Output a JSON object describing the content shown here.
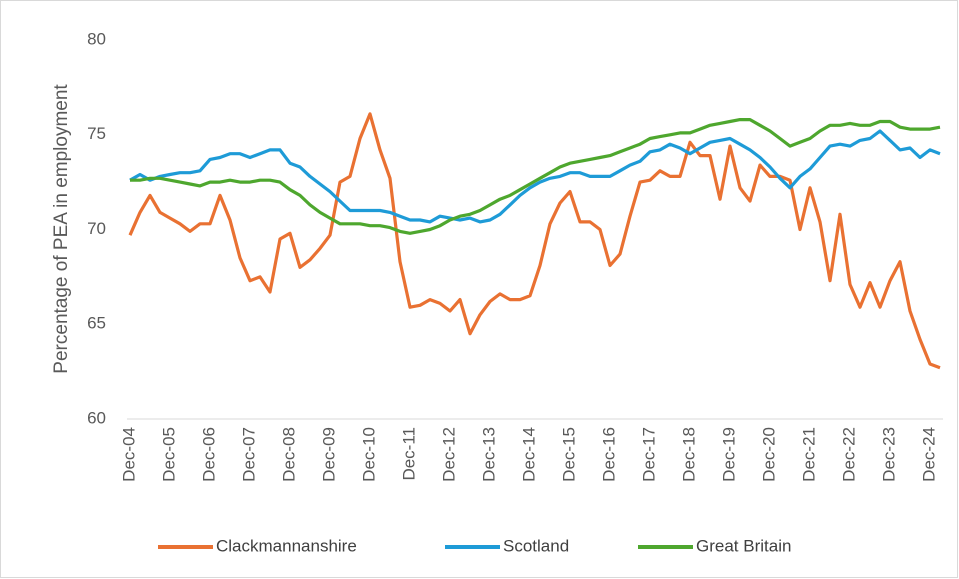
{
  "chart_data": {
    "type": "line",
    "y_label": "Percentage of PEA in employment",
    "categories": [
      "Dec-04",
      null,
      null,
      null,
      "Dec-05",
      null,
      null,
      null,
      "Dec-06",
      null,
      null,
      null,
      "Dec-07",
      null,
      null,
      null,
      "Dec-08",
      null,
      null,
      null,
      "Dec-09",
      null,
      null,
      null,
      "Dec-10",
      null,
      null,
      null,
      "Dec-11",
      null,
      null,
      null,
      "Dec-12",
      null,
      null,
      null,
      "Dec-13",
      null,
      null,
      null,
      "Dec-14",
      null,
      null,
      null,
      "Dec-15",
      null,
      null,
      null,
      "Dec-16",
      null,
      null,
      null,
      "Dec-17",
      null,
      null,
      null,
      "Dec-18",
      null,
      null,
      null,
      "Dec-19",
      null,
      null,
      null,
      "Dec-20",
      null,
      null,
      null,
      "Dec-21",
      null,
      null,
      null,
      "Dec-22",
      null,
      null,
      null,
      "Dec-23",
      null,
      null,
      null,
      "Dec-24",
      null
    ],
    "series": [
      {
        "name": "Clackmannanshire",
        "color": "#e97132",
        "values": [
          69.7,
          70.9,
          71.8,
          70.9,
          70.6,
          70.3,
          69.9,
          70.3,
          70.3,
          71.8,
          70.5,
          68.5,
          67.3,
          67.5,
          66.7,
          69.5,
          69.8,
          68.0,
          68.4,
          69.0,
          69.7,
          72.5,
          72.8,
          74.8,
          76.1,
          74.2,
          72.7,
          68.3,
          65.9,
          66.0,
          66.3,
          66.1,
          65.7,
          66.3,
          64.5,
          65.5,
          66.2,
          66.6,
          66.3,
          66.3,
          66.5,
          68.1,
          70.3,
          71.4,
          72.0,
          70.4,
          70.4,
          70.0,
          68.1,
          68.7,
          70.7,
          72.5,
          72.6,
          73.1,
          72.8,
          72.8,
          74.6,
          73.9,
          73.9,
          71.6,
          74.4,
          72.2,
          71.5,
          73.4,
          72.8,
          72.8,
          72.6,
          70.0,
          72.2,
          70.4,
          67.3,
          70.8,
          67.1,
          65.9,
          67.2,
          65.9,
          67.3,
          68.3,
          65.7,
          64.2,
          62.9,
          62.7
        ]
      },
      {
        "name": "Scotland",
        "color": "#1e9bd7",
        "values": [
          72.6,
          72.9,
          72.6,
          72.8,
          72.9,
          73.0,
          73.0,
          73.1,
          73.7,
          73.8,
          74.0,
          74.0,
          73.8,
          74.0,
          74.2,
          74.2,
          73.5,
          73.3,
          72.8,
          72.4,
          72.0,
          71.5,
          71.0,
          71.0,
          71.0,
          71.0,
          70.9,
          70.7,
          70.5,
          70.5,
          70.4,
          70.7,
          70.6,
          70.5,
          70.6,
          70.4,
          70.5,
          70.8,
          71.3,
          71.8,
          72.2,
          72.5,
          72.7,
          72.8,
          73.0,
          73.0,
          72.8,
          72.8,
          72.8,
          73.1,
          73.4,
          73.6,
          74.1,
          74.2,
          74.5,
          74.3,
          74.0,
          74.3,
          74.6,
          74.7,
          74.8,
          74.5,
          74.2,
          73.8,
          73.3,
          72.7,
          72.2,
          72.8,
          73.2,
          73.8,
          74.4,
          74.5,
          74.4,
          74.7,
          74.8,
          75.2,
          74.7,
          74.2,
          74.3,
          73.8,
          74.2,
          74.0
        ]
      },
      {
        "name": "Great Britain",
        "color": "#4ea72e",
        "values": [
          72.6,
          72.6,
          72.7,
          72.7,
          72.6,
          72.5,
          72.4,
          72.3,
          72.5,
          72.5,
          72.6,
          72.5,
          72.5,
          72.6,
          72.6,
          72.5,
          72.1,
          71.8,
          71.3,
          70.9,
          70.6,
          70.3,
          70.3,
          70.3,
          70.2,
          70.2,
          70.1,
          69.9,
          69.8,
          69.9,
          70.0,
          70.2,
          70.5,
          70.7,
          70.8,
          71.0,
          71.3,
          71.6,
          71.8,
          72.1,
          72.4,
          72.7,
          73.0,
          73.3,
          73.5,
          73.6,
          73.7,
          73.8,
          73.9,
          74.1,
          74.3,
          74.5,
          74.8,
          74.9,
          75.0,
          75.1,
          75.1,
          75.3,
          75.5,
          75.6,
          75.7,
          75.8,
          75.8,
          75.5,
          75.2,
          74.8,
          74.4,
          74.6,
          74.8,
          75.2,
          75.5,
          75.5,
          75.6,
          75.5,
          75.5,
          75.7,
          75.7,
          75.4,
          75.3,
          75.3,
          75.3,
          75.4
        ]
      }
    ],
    "ylim": [
      60,
      80
    ],
    "yticks": [
      60,
      65,
      70,
      75,
      80
    ],
    "grid": false
  }
}
